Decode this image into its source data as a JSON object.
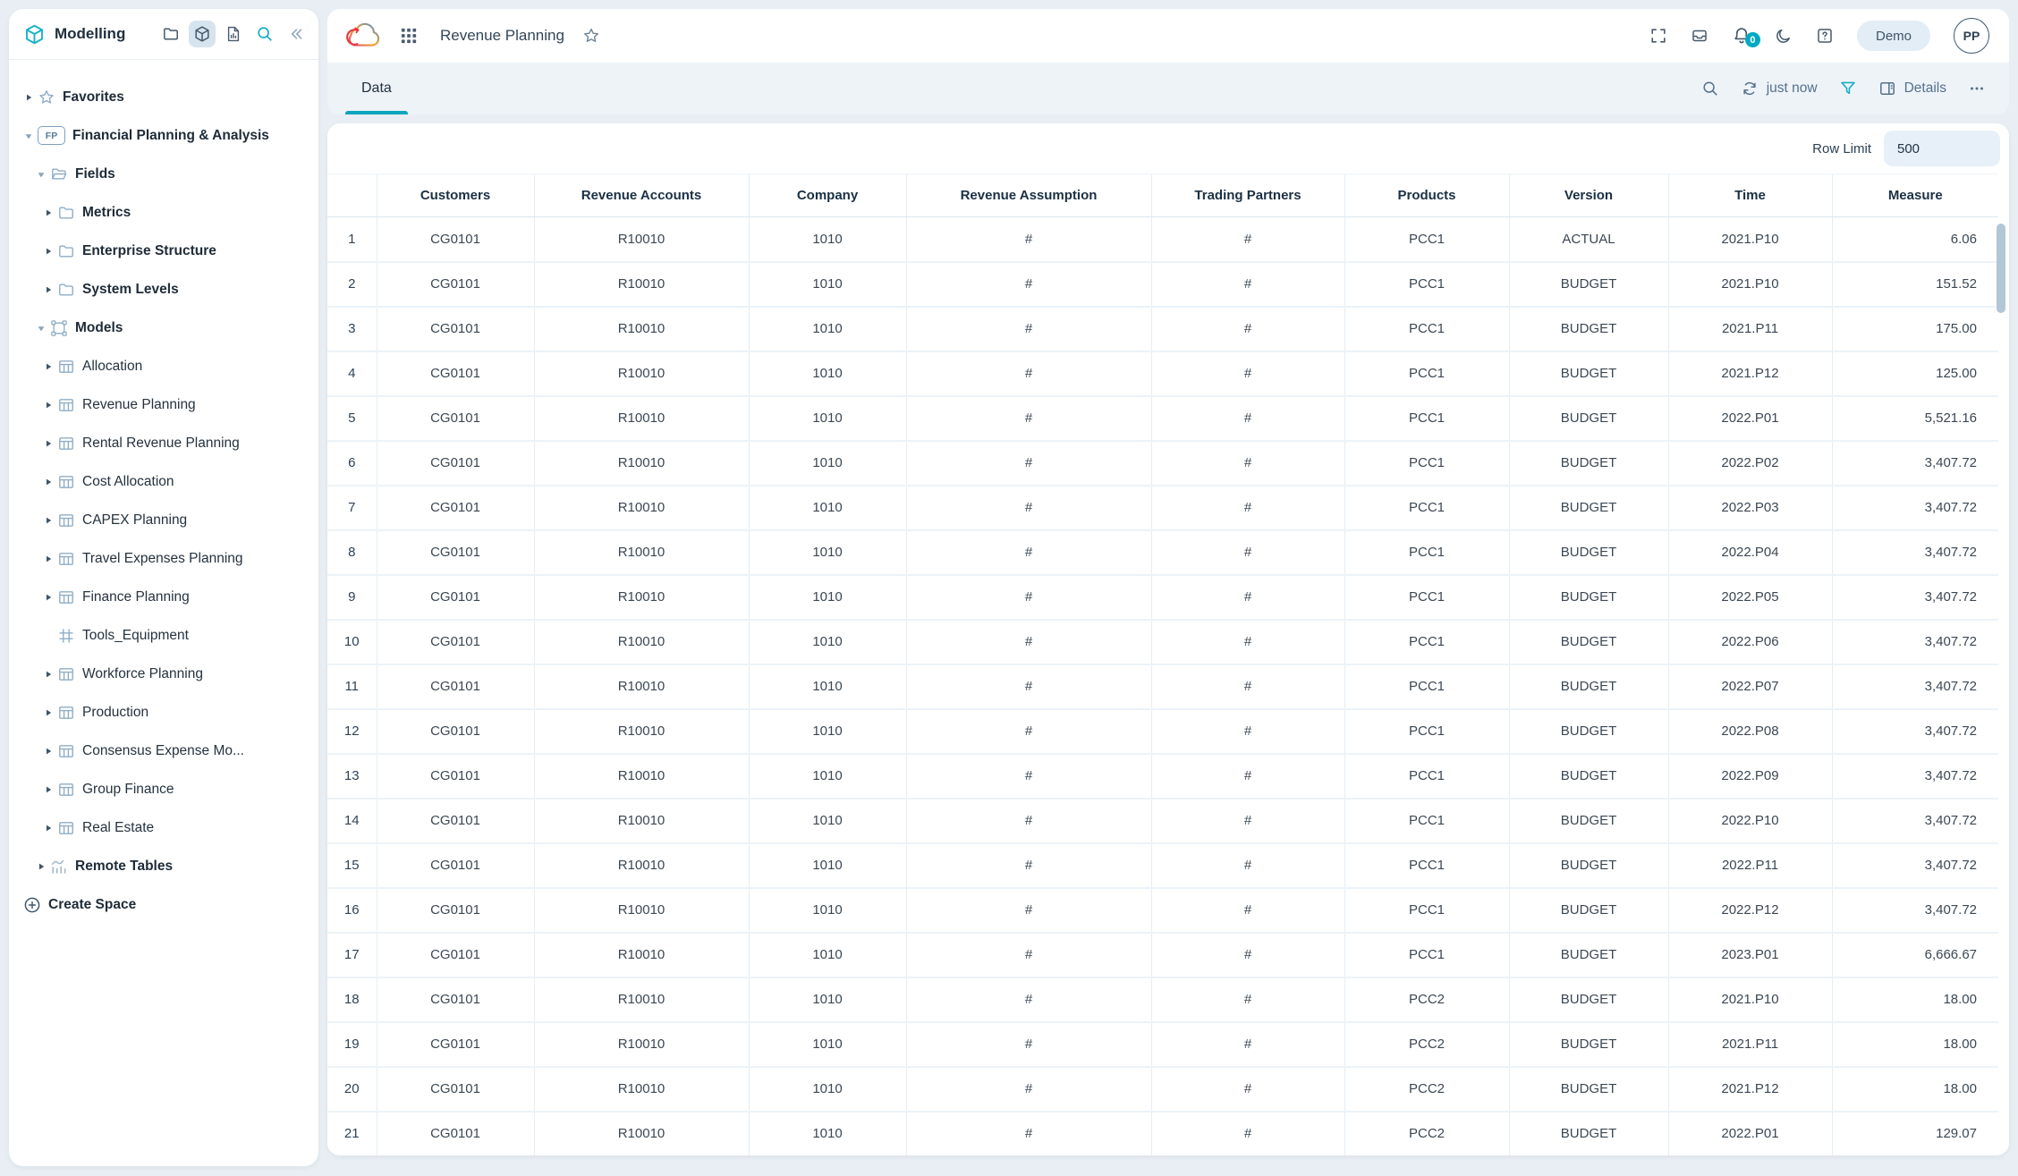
{
  "colors": {
    "accent_teal": "#0aa4bc",
    "badge_teal": "#00a9c2",
    "page_background": "#e8eef3",
    "card_background": "#ffffff"
  },
  "sidebar": {
    "title": "Modelling",
    "items": [
      {
        "label": "Favorites",
        "level": 0,
        "state": "collapsed",
        "icon": "star-icon",
        "weight": "bold"
      },
      {
        "label": "Financial Planning & Analysis",
        "level": 0,
        "state": "expanded",
        "icon": "fp-badge",
        "badge": "FP",
        "weight": "bold"
      },
      {
        "label": "Fields",
        "level": 1,
        "state": "expanded",
        "icon": "folder-open-icon",
        "weight": "bold"
      },
      {
        "label": "Metrics",
        "level": 2,
        "state": "collapsed",
        "icon": "folder-icon",
        "weight": "bold"
      },
      {
        "label": "Enterprise Structure",
        "level": 2,
        "state": "collapsed",
        "icon": "folder-icon",
        "weight": "bold"
      },
      {
        "label": "System Levels",
        "level": 2,
        "state": "collapsed",
        "icon": "folder-icon",
        "weight": "bold"
      },
      {
        "label": "Models",
        "level": 1,
        "state": "expanded",
        "icon": "models-icon",
        "weight": "bold"
      },
      {
        "label": "Allocation",
        "level": 2,
        "state": "collapsed",
        "icon": "table-icon",
        "weight": "normal"
      },
      {
        "label": "Revenue Planning",
        "level": 2,
        "state": "collapsed",
        "icon": "table-icon",
        "weight": "normal"
      },
      {
        "label": "Rental Revenue Planning",
        "level": 2,
        "state": "collapsed",
        "icon": "table-icon",
        "weight": "normal"
      },
      {
        "label": "Cost Allocation",
        "level": 2,
        "state": "collapsed",
        "icon": "table-icon",
        "weight": "normal"
      },
      {
        "label": "CAPEX Planning",
        "level": 2,
        "state": "collapsed",
        "icon": "table-icon",
        "weight": "normal"
      },
      {
        "label": "Travel Expenses Planning",
        "level": 2,
        "state": "collapsed",
        "icon": "table-icon",
        "weight": "normal"
      },
      {
        "label": "Finance Planning",
        "level": 2,
        "state": "collapsed",
        "icon": "table-icon",
        "weight": "normal"
      },
      {
        "label": "Tools_Equipment",
        "level": 2,
        "state": "none",
        "icon": "grid-hash-icon",
        "weight": "normal"
      },
      {
        "label": "Workforce Planning",
        "level": 2,
        "state": "collapsed",
        "icon": "table-icon",
        "weight": "normal"
      },
      {
        "label": "Production",
        "level": 2,
        "state": "collapsed",
        "icon": "table-icon",
        "weight": "normal"
      },
      {
        "label": "Consensus Expense Mo...",
        "level": 2,
        "state": "collapsed",
        "icon": "table-icon",
        "weight": "normal"
      },
      {
        "label": "Group Finance",
        "level": 2,
        "state": "collapsed",
        "icon": "table-icon",
        "weight": "normal"
      },
      {
        "label": "Real Estate",
        "level": 2,
        "state": "collapsed",
        "icon": "table-icon",
        "weight": "normal"
      },
      {
        "label": "Remote Tables",
        "level": 1,
        "state": "collapsed",
        "icon": "remote-tables-icon",
        "weight": "bold"
      },
      {
        "label": "Create Space",
        "level": 0,
        "state": "action",
        "icon": "plus-circle-icon",
        "weight": "bold"
      }
    ]
  },
  "header": {
    "title": "Revenue Planning",
    "env_badge": "Demo",
    "avatar_initials": "PP",
    "notification_count": "0"
  },
  "tabs": {
    "data_label": "Data"
  },
  "toolbar": {
    "refresh_status": "just now",
    "details_label": "Details"
  },
  "row_limit": {
    "label": "Row Limit",
    "value": "500"
  },
  "table": {
    "columns": [
      "Customers",
      "Revenue Accounts",
      "Company",
      "Revenue Assumption",
      "Trading Partners",
      "Products",
      "Version",
      "Time",
      "Measure"
    ],
    "rows": [
      [
        "1",
        "CG0101",
        "R10010",
        "1010",
        "#",
        "#",
        "PCC1",
        "ACTUAL",
        "2021.P10",
        "6.06"
      ],
      [
        "2",
        "CG0101",
        "R10010",
        "1010",
        "#",
        "#",
        "PCC1",
        "BUDGET",
        "2021.P10",
        "151.52"
      ],
      [
        "3",
        "CG0101",
        "R10010",
        "1010",
        "#",
        "#",
        "PCC1",
        "BUDGET",
        "2021.P11",
        "175.00"
      ],
      [
        "4",
        "CG0101",
        "R10010",
        "1010",
        "#",
        "#",
        "PCC1",
        "BUDGET",
        "2021.P12",
        "125.00"
      ],
      [
        "5",
        "CG0101",
        "R10010",
        "1010",
        "#",
        "#",
        "PCC1",
        "BUDGET",
        "2022.P01",
        "5,521.16"
      ],
      [
        "6",
        "CG0101",
        "R10010",
        "1010",
        "#",
        "#",
        "PCC1",
        "BUDGET",
        "2022.P02",
        "3,407.72"
      ],
      [
        "7",
        "CG0101",
        "R10010",
        "1010",
        "#",
        "#",
        "PCC1",
        "BUDGET",
        "2022.P03",
        "3,407.72"
      ],
      [
        "8",
        "CG0101",
        "R10010",
        "1010",
        "#",
        "#",
        "PCC1",
        "BUDGET",
        "2022.P04",
        "3,407.72"
      ],
      [
        "9",
        "CG0101",
        "R10010",
        "1010",
        "#",
        "#",
        "PCC1",
        "BUDGET",
        "2022.P05",
        "3,407.72"
      ],
      [
        "10",
        "CG0101",
        "R10010",
        "1010",
        "#",
        "#",
        "PCC1",
        "BUDGET",
        "2022.P06",
        "3,407.72"
      ],
      [
        "11",
        "CG0101",
        "R10010",
        "1010",
        "#",
        "#",
        "PCC1",
        "BUDGET",
        "2022.P07",
        "3,407.72"
      ],
      [
        "12",
        "CG0101",
        "R10010",
        "1010",
        "#",
        "#",
        "PCC1",
        "BUDGET",
        "2022.P08",
        "3,407.72"
      ],
      [
        "13",
        "CG0101",
        "R10010",
        "1010",
        "#",
        "#",
        "PCC1",
        "BUDGET",
        "2022.P09",
        "3,407.72"
      ],
      [
        "14",
        "CG0101",
        "R10010",
        "1010",
        "#",
        "#",
        "PCC1",
        "BUDGET",
        "2022.P10",
        "3,407.72"
      ],
      [
        "15",
        "CG0101",
        "R10010",
        "1010",
        "#",
        "#",
        "PCC1",
        "BUDGET",
        "2022.P11",
        "3,407.72"
      ],
      [
        "16",
        "CG0101",
        "R10010",
        "1010",
        "#",
        "#",
        "PCC1",
        "BUDGET",
        "2022.P12",
        "3,407.72"
      ],
      [
        "17",
        "CG0101",
        "R10010",
        "1010",
        "#",
        "#",
        "PCC1",
        "BUDGET",
        "2023.P01",
        "6,666.67"
      ],
      [
        "18",
        "CG0101",
        "R10010",
        "1010",
        "#",
        "#",
        "PCC2",
        "BUDGET",
        "2021.P10",
        "18.00"
      ],
      [
        "19",
        "CG0101",
        "R10010",
        "1010",
        "#",
        "#",
        "PCC2",
        "BUDGET",
        "2021.P11",
        "18.00"
      ],
      [
        "20",
        "CG0101",
        "R10010",
        "1010",
        "#",
        "#",
        "PCC2",
        "BUDGET",
        "2021.P12",
        "18.00"
      ],
      [
        "21",
        "CG0101",
        "R10010",
        "1010",
        "#",
        "#",
        "PCC2",
        "BUDGET",
        "2022.P01",
        "129.07"
      ]
    ]
  }
}
